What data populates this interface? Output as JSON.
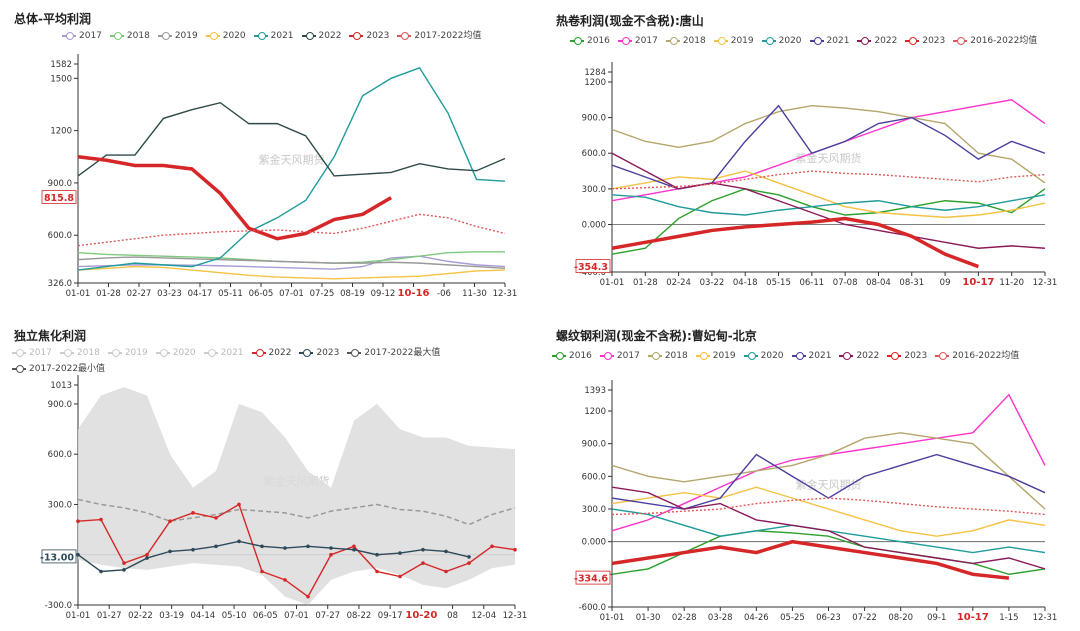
{
  "chart_data": [
    {
      "type": "line",
      "title": "总体-平均利润",
      "watermark": "紫金天风期货",
      "y_ticks": [
        "326.0",
        "600.0",
        "900.0",
        "1200",
        "1500",
        "1582"
      ],
      "ylim": [
        326,
        1582
      ],
      "x_ticks": [
        "01-01",
        "01-28",
        "02-27",
        "03-23",
        "04-17",
        "05-11",
        "06-05",
        "07-01",
        "07-25",
        "08-19",
        "09-12",
        "10-16",
        "-06",
        "11-30",
        "12-31"
      ],
      "highlight_x": "10-16",
      "current_value_label": "815.8",
      "series": [
        {
          "name": "2017",
          "color": "#a89bd6",
          "values": [
            420,
            425,
            430,
            430,
            428,
            425,
            420,
            415,
            410,
            405,
            420,
            470,
            480,
            450,
            430,
            420
          ]
        },
        {
          "name": "2018",
          "color": "#7fc97f",
          "values": [
            500,
            490,
            485,
            480,
            475,
            470,
            460,
            450,
            445,
            440,
            445,
            460,
            480,
            500,
            505,
            505
          ]
        },
        {
          "name": "2019",
          "color": "#999999",
          "values": [
            460,
            470,
            475,
            470,
            465,
            460,
            455,
            450,
            445,
            440,
            440,
            445,
            440,
            430,
            420,
            410
          ]
        },
        {
          "name": "2020",
          "color": "#f5c242",
          "values": [
            400,
            410,
            420,
            415,
            400,
            385,
            370,
            360,
            355,
            350,
            355,
            360,
            365,
            380,
            395,
            400
          ]
        },
        {
          "name": "2021",
          "color": "#1f9b9b",
          "values": [
            400,
            420,
            440,
            430,
            420,
            470,
            620,
            700,
            800,
            1050,
            1400,
            1500,
            1560,
            1300,
            920,
            910
          ]
        },
        {
          "name": "2022",
          "color": "#2e4a4a",
          "values": [
            940,
            1060,
            1060,
            1270,
            1320,
            1360,
            1240,
            1240,
            1170,
            940,
            950,
            960,
            1010,
            980,
            970,
            1040
          ]
        },
        {
          "name": "2023",
          "color": "#d62728",
          "values": [
            1050,
            1030,
            1000,
            1000,
            980,
            840,
            640,
            580,
            610,
            690,
            720,
            815.8
          ]
        },
        {
          "name": "2017-2022均值",
          "color": "#e15759",
          "values": [
            540,
            560,
            580,
            600,
            610,
            620,
            625,
            630,
            620,
            610,
            640,
            680,
            720,
            700,
            650,
            610
          ]
        }
      ]
    },
    {
      "type": "line",
      "title": "热卷利润(现金不含税):唐山",
      "watermark": "紫金天风期货",
      "y_ticks": [
        "-400.0",
        "0.000",
        "300.0",
        "600.0",
        "900.0",
        "1200",
        "1284"
      ],
      "ylim": [
        -400,
        1284
      ],
      "x_ticks": [
        "01-01",
        "01-28",
        "02-24",
        "03-22",
        "04-18",
        "05-15",
        "06-11",
        "07-08",
        "08-04",
        "08-31",
        "09",
        "10-17",
        "11-20",
        "12-31"
      ],
      "highlight_x": "10-17",
      "current_value_label": "-354.3",
      "series": [
        {
          "name": "2016",
          "color": "#2ca02c",
          "values": [
            -250,
            -200,
            50,
            200,
            300,
            250,
            150,
            80,
            100,
            150,
            200,
            180,
            100,
            300
          ]
        },
        {
          "name": "2017",
          "color": "#ff33cc",
          "values": [
            200,
            250,
            300,
            350,
            400,
            500,
            600,
            700,
            800,
            900,
            950,
            1000,
            1050,
            850
          ]
        },
        {
          "name": "2018",
          "color": "#b5a66b",
          "values": [
            800,
            700,
            650,
            700,
            850,
            950,
            1000,
            980,
            950,
            900,
            850,
            600,
            550,
            350
          ]
        },
        {
          "name": "2019",
          "color": "#f5c242",
          "values": [
            300,
            350,
            400,
            380,
            450,
            350,
            250,
            150,
            100,
            80,
            60,
            80,
            120,
            180
          ]
        },
        {
          "name": "2020",
          "color": "#1f9b9b",
          "values": [
            250,
            230,
            150,
            100,
            80,
            120,
            150,
            180,
            200,
            150,
            120,
            150,
            200,
            250
          ]
        },
        {
          "name": "2021",
          "color": "#4b3f9e",
          "values": [
            500,
            400,
            300,
            350,
            700,
            1000,
            600,
            700,
            850,
            900,
            750,
            550,
            700,
            600
          ]
        },
        {
          "name": "2022",
          "color": "#8b1a5a",
          "values": [
            600,
            450,
            300,
            350,
            300,
            200,
            100,
            0,
            -50,
            -100,
            -150,
            -200,
            -180,
            -200
          ]
        },
        {
          "name": "2023",
          "color": "#d62728",
          "values": [
            -200,
            -150,
            -100,
            -50,
            -20,
            0,
            20,
            50,
            0,
            -100,
            -250,
            -354.3
          ]
        },
        {
          "name": "2016-2022均值",
          "color": "#e15759",
          "values": [
            300,
            310,
            320,
            340,
            380,
            420,
            450,
            430,
            420,
            400,
            380,
            360,
            400,
            420
          ]
        }
      ]
    },
    {
      "type": "line",
      "title": "独立焦化利润",
      "watermark": "紫金天风期货",
      "y_ticks": [
        "-300.0",
        "0.000",
        "300.0",
        "600.0",
        "900.0",
        "1013"
      ],
      "ylim": [
        -300,
        1013
      ],
      "x_ticks": [
        "01-01",
        "01-27",
        "02-22",
        "03-19",
        "04-14",
        "05-10",
        "06-05",
        "07-01",
        "07-27",
        "08-22",
        "09-17",
        "10-20",
        "08",
        "12-04",
        "12-31"
      ],
      "highlight_x": "10-20",
      "current_value_label": "-13.00",
      "series": [
        {
          "name": "2017",
          "color": "#cccccc",
          "values": []
        },
        {
          "name": "2018",
          "color": "#cccccc",
          "values": []
        },
        {
          "name": "2019",
          "color": "#cccccc",
          "values": []
        },
        {
          "name": "2020",
          "color": "#cccccc",
          "values": []
        },
        {
          "name": "2021",
          "color": "#cccccc",
          "values": []
        },
        {
          "name": "2022",
          "color": "#d62728",
          "values": [
            200,
            210,
            -50,
            0,
            200,
            250,
            220,
            300,
            -100,
            -150,
            -250,
            0,
            50,
            -100,
            -130,
            -50,
            -100,
            -50,
            50,
            30
          ]
        },
        {
          "name": "2023",
          "color": "#2e4a5a",
          "values": [
            0,
            -100,
            -90,
            -20,
            20,
            30,
            50,
            80,
            50,
            40,
            50,
            40,
            30,
            0,
            10,
            30,
            20,
            -13
          ]
        },
        {
          "name": "2017-2022最大值",
          "color": "#555555",
          "values": [
            750,
            950,
            1000,
            950,
            600,
            400,
            500,
            900,
            850,
            700,
            500,
            400,
            800,
            900,
            750,
            700,
            700,
            650,
            640,
            630
          ]
        },
        {
          "name": "2017-2022最小值",
          "color": "#555555",
          "values": [
            -30,
            -60,
            -80,
            -90,
            -70,
            -50,
            -60,
            -70,
            -120,
            -250,
            -300,
            -150,
            -100,
            -80,
            -120,
            -180,
            -200,
            -150,
            -80,
            -60
          ]
        }
      ],
      "mean_series": {
        "color": "#999999",
        "values": [
          330,
          300,
          280,
          250,
          200,
          220,
          240,
          270,
          260,
          250,
          220,
          260,
          280,
          300,
          270,
          260,
          230,
          180,
          240,
          280
        ]
      }
    },
    {
      "type": "line",
      "title": "螺纹钢利润(现金不含税):曹妃甸-北京",
      "watermark": "紫金天风期货",
      "y_ticks": [
        "-600.0",
        "-300.0",
        "0.000",
        "300.0",
        "600.0",
        "900.0",
        "1200",
        "1393"
      ],
      "ylim": [
        -600,
        1393
      ],
      "x_ticks": [
        "01-01",
        "01-30",
        "02-28",
        "03-28",
        "04-26",
        "05-25",
        "06-23",
        "07-22",
        "08-20",
        "09-1",
        "10-17",
        "1-15",
        "12-31"
      ],
      "highlight_x": "10-17",
      "current_value_label": "-334.6",
      "series": [
        {
          "name": "2016",
          "color": "#2ca02c",
          "values": [
            -300,
            -250,
            -100,
            50,
            100,
            80,
            50,
            -50,
            -100,
            -150,
            -200,
            -300,
            -250
          ]
        },
        {
          "name": "2017",
          "color": "#ff33cc",
          "values": [
            100,
            200,
            350,
            500,
            650,
            750,
            800,
            850,
            900,
            950,
            1000,
            1350,
            700
          ]
        },
        {
          "name": "2018",
          "color": "#b5a66b",
          "values": [
            700,
            600,
            550,
            600,
            650,
            700,
            800,
            950,
            1000,
            950,
            900,
            600,
            300
          ]
        },
        {
          "name": "2019",
          "color": "#f5c242",
          "values": [
            350,
            400,
            450,
            400,
            500,
            400,
            300,
            200,
            100,
            50,
            100,
            200,
            150
          ]
        },
        {
          "name": "2020",
          "color": "#1f9b9b",
          "values": [
            300,
            250,
            150,
            50,
            100,
            150,
            100,
            50,
            0,
            -50,
            -100,
            -50,
            -100
          ]
        },
        {
          "name": "2021",
          "color": "#4b3f9e",
          "values": [
            400,
            350,
            300,
            400,
            800,
            600,
            400,
            600,
            700,
            800,
            700,
            600,
            450
          ]
        },
        {
          "name": "2022",
          "color": "#8b1a5a",
          "values": [
            500,
            450,
            300,
            350,
            200,
            150,
            100,
            -50,
            -100,
            -150,
            -200,
            -150,
            -250
          ]
        },
        {
          "name": "2023",
          "color": "#d62728",
          "values": [
            -200,
            -150,
            -100,
            -50,
            -100,
            0,
            -50,
            -100,
            -150,
            -200,
            -300,
            -334.6
          ]
        },
        {
          "name": "2016-2022均值",
          "color": "#e15759",
          "values": [
            250,
            260,
            280,
            300,
            350,
            380,
            400,
            380,
            350,
            320,
            300,
            280,
            250
          ]
        }
      ]
    }
  ]
}
